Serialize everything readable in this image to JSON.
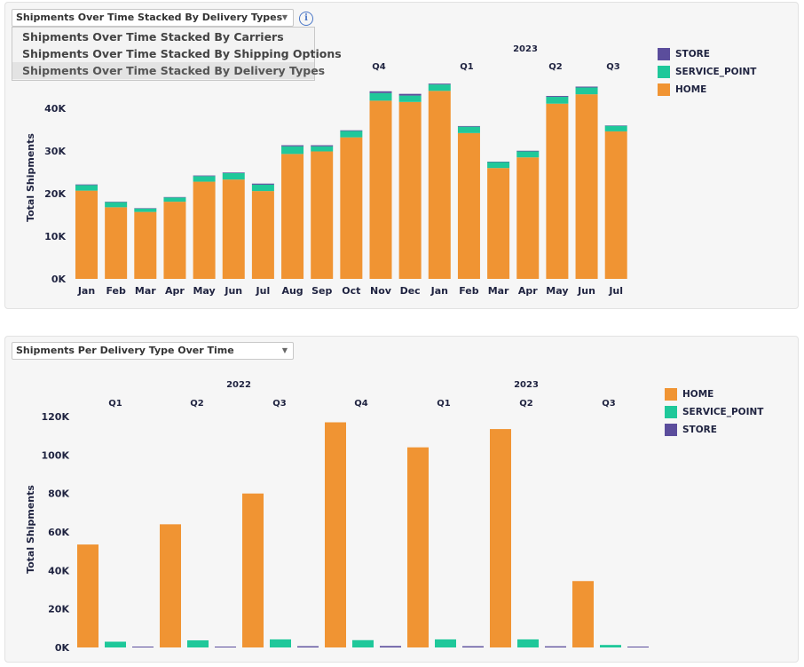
{
  "colors": {
    "HOME": "#f09433",
    "SERVICE_POINT": "#1fc89a",
    "STORE": "#5b4d9c"
  },
  "chart1": {
    "selected": "Shipments Over Time Stacked By Delivery Types",
    "info_icon": "i",
    "dropdown_options": [
      "Shipments Over Time Stacked By Carriers",
      "Shipments Over Time Stacked By Shipping Options",
      "Shipments Over Time Stacked By Delivery Types"
    ],
    "years": [
      {
        "label": "2023"
      }
    ],
    "quarters": [
      {
        "label": "Q4"
      },
      {
        "label": "Q1"
      },
      {
        "label": "Q2"
      },
      {
        "label": "Q3"
      }
    ],
    "legend": [
      "STORE",
      "SERVICE_POINT",
      "HOME"
    ]
  },
  "chart2": {
    "selected": "Shipments Per Delivery Type Over Time",
    "years": [
      {
        "label": "2022"
      },
      {
        "label": "2023"
      }
    ],
    "quarters": [
      {
        "label": "Q1"
      },
      {
        "label": "Q2"
      },
      {
        "label": "Q3"
      },
      {
        "label": "Q4"
      },
      {
        "label": "Q1"
      },
      {
        "label": "Q2"
      },
      {
        "label": "Q3"
      }
    ],
    "legend": [
      "HOME",
      "SERVICE_POINT",
      "STORE"
    ]
  },
  "chart_data": [
    {
      "type": "bar",
      "stacked": true,
      "categories": [
        "Jan",
        "Feb",
        "Mar",
        "Apr",
        "May",
        "Jun",
        "Jul",
        "Aug",
        "Sep",
        "Oct",
        "Nov",
        "Dec",
        "Jan",
        "Feb",
        "Mar",
        "Apr",
        "May",
        "Jun",
        "Jul"
      ],
      "series": [
        {
          "name": "HOME",
          "values": [
            20700,
            16800,
            15700,
            18100,
            22800,
            23300,
            20600,
            29300,
            29900,
            33200,
            41800,
            41500,
            44100,
            34200,
            26000,
            28500,
            41100,
            43300,
            34600
          ]
        },
        {
          "name": "SERVICE_POINT",
          "values": [
            1300,
            1200,
            800,
            1000,
            1300,
            1500,
            1500,
            1800,
            1200,
            1500,
            1800,
            1500,
            1500,
            1500,
            1400,
            1400,
            1600,
            1600,
            1300
          ]
        },
        {
          "name": "STORE",
          "values": [
            150,
            100,
            100,
            100,
            150,
            150,
            250,
            250,
            250,
            150,
            400,
            400,
            200,
            150,
            100,
            150,
            200,
            200,
            100
          ]
        }
      ],
      "xlabel": "",
      "ylabel": "Total Shipments",
      "ylim": [
        0,
        45000
      ],
      "yticks": [
        0,
        10000,
        20000,
        30000,
        40000
      ],
      "ytick_labels": [
        "0K",
        "10K",
        "20K",
        "30K",
        "40K"
      ],
      "legend_position": "top-right",
      "grid": false
    },
    {
      "type": "bar",
      "stacked": false,
      "categories": [
        "Q1",
        "Q2",
        "Q3",
        "Q4",
        "Q1",
        "Q2",
        "Q3"
      ],
      "series": [
        {
          "name": "HOME",
          "values": [
            53500,
            64000,
            80000,
            117000,
            104000,
            113500,
            34500
          ]
        },
        {
          "name": "SERVICE_POINT",
          "values": [
            3000,
            3700,
            4200,
            3800,
            4200,
            4200,
            1300
          ]
        },
        {
          "name": "STORE",
          "values": [
            400,
            400,
            650,
            750,
            650,
            600,
            200
          ]
        }
      ],
      "xlabel": "",
      "ylabel": "Total Shipments",
      "ylim": [
        0,
        120000
      ],
      "yticks": [
        0,
        20000,
        40000,
        60000,
        80000,
        100000,
        120000
      ],
      "ytick_labels": [
        "0K",
        "20K",
        "40K",
        "60K",
        "80K",
        "100K",
        "120K"
      ],
      "legend_position": "top-right",
      "grid": false
    }
  ]
}
